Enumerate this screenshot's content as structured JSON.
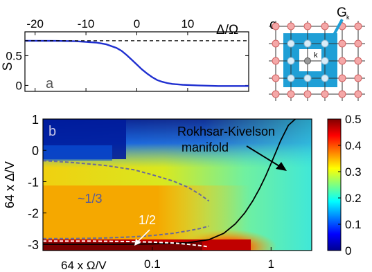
{
  "chart_data": [
    {
      "panel": "a",
      "type": "line",
      "label": "a",
      "xlabel": "Δ/Ω",
      "ylabel": "S",
      "xlim": [
        -22,
        22
      ],
      "ylim": [
        -0.1,
        0.9
      ],
      "xticks": [
        -20,
        -10,
        0,
        10
      ],
      "yticks": [
        0,
        0.5
      ],
      "grid": false,
      "series": [
        {
          "style": "solid",
          "color": "#1f2fd0",
          "x": [
            -22,
            -16,
            -12,
            -8,
            -6,
            -4,
            -3,
            -2,
            -1,
            0,
            1,
            2,
            3,
            4,
            5,
            6,
            7,
            9,
            12,
            16,
            22
          ],
          "y": [
            0.75,
            0.748,
            0.742,
            0.72,
            0.69,
            0.63,
            0.58,
            0.51,
            0.43,
            0.35,
            0.27,
            0.2,
            0.14,
            0.09,
            0.06,
            0.04,
            0.025,
            0.01,
            0.0,
            -0.01,
            -0.01
          ]
        },
        {
          "style": "dashed",
          "color": "#000000",
          "x": [
            -22,
            22
          ],
          "y": [
            0.75,
            0.75
          ]
        }
      ]
    },
    {
      "panel": "b",
      "type": "heatmap",
      "label": "b",
      "xlabel": "64 x Ω/V",
      "ylabel": "64 x Δ/V",
      "xscale": "log",
      "xlim": [
        0.012,
        2.2
      ],
      "ylim": [
        -3.2,
        1
      ],
      "xticks": [
        0.1,
        1
      ],
      "yticks": [
        1,
        0,
        -1,
        -2,
        -3
      ],
      "colorbar": {
        "min": 0,
        "max": 0.5,
        "ticks": [
          0.5,
          0.4,
          0.3,
          0.2,
          0.1,
          0
        ]
      },
      "annotations": [
        {
          "text": "Rokhsar-Kivelson",
          "color": "#000000"
        },
        {
          "text": "manifold",
          "color": "#000000"
        },
        {
          "text": "~1/3",
          "color": "#555a9a"
        },
        {
          "text": "1/2",
          "color": "#ffffff"
        }
      ],
      "curves": [
        {
          "style": "solid",
          "color": "#000000",
          "x": [
            0.012,
            0.05,
            0.1,
            0.2,
            0.3,
            0.4,
            0.5,
            0.6,
            0.7,
            0.8,
            0.9,
            1.0,
            1.1,
            1.2,
            1.4,
            1.6
          ],
          "y": [
            -3.0,
            -3.0,
            -2.99,
            -2.95,
            -2.85,
            -2.65,
            -2.35,
            -2.0,
            -1.62,
            -1.22,
            -0.82,
            -0.42,
            -0.05,
            0.3,
            0.8,
            1.0
          ]
        },
        {
          "style": "dashed",
          "color": "#6a6a9a",
          "x": [
            0.012,
            0.02,
            0.04,
            0.07,
            0.1,
            0.15,
            0.2,
            0.25,
            0.3
          ],
          "y": [
            -0.33,
            -0.38,
            -0.48,
            -0.62,
            -0.78,
            -0.98,
            -1.18,
            -1.4,
            -1.62
          ]
        },
        {
          "style": "dashed",
          "color": "#6a6a9a",
          "x": [
            0.012,
            0.02,
            0.04,
            0.07,
            0.1,
            0.15,
            0.2,
            0.25,
            0.3
          ],
          "y": [
            -2.82,
            -2.82,
            -2.8,
            -2.76,
            -2.72,
            -2.65,
            -2.57,
            -2.5,
            -2.42
          ]
        },
        {
          "style": "dashed",
          "color": "#ffffff",
          "x": [
            0.012,
            0.03,
            0.06,
            0.1,
            0.15,
            0.2,
            0.25,
            0.3
          ],
          "y": [
            -2.9,
            -2.9,
            -2.91,
            -2.93,
            -2.96,
            -3.0,
            -3.04,
            -3.08
          ]
        }
      ]
    },
    {
      "panel": "c",
      "type": "diagram",
      "label": "c",
      "annotations": [
        {
          "text": "G"
        },
        {
          "text": "k"
        },
        {
          "text": "k"
        }
      ]
    }
  ]
}
